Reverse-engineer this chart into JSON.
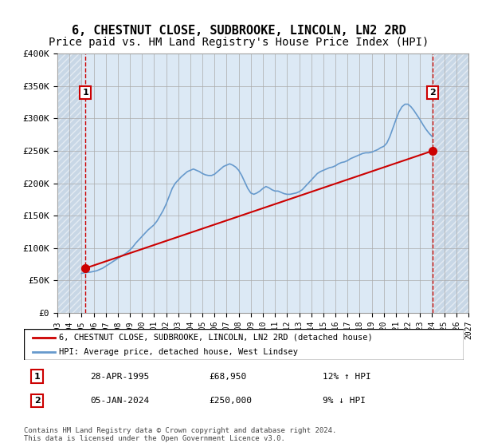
{
  "title": "6, CHESTNUT CLOSE, SUDBROOKE, LINCOLN, LN2 2RD",
  "subtitle": "Price paid vs. HM Land Registry's House Price Index (HPI)",
  "title_fontsize": 11,
  "subtitle_fontsize": 10,
  "background_color": "#dce9f5",
  "hatch_color": "#c0d0e0",
  "grid_color": "#aaaaaa",
  "ymin": 0,
  "ymax": 400000,
  "yticks": [
    0,
    50000,
    100000,
    150000,
    200000,
    250000,
    300000,
    350000,
    400000
  ],
  "ytick_labels": [
    "£0",
    "£50K",
    "£100K",
    "£150K",
    "£200K",
    "£250K",
    "£300K",
    "£350K",
    "£400K"
  ],
  "xmin": 1993.0,
  "xmax": 2027.0,
  "xticks": [
    1993,
    1994,
    1995,
    1996,
    1997,
    1998,
    1999,
    2000,
    2001,
    2002,
    2003,
    2004,
    2005,
    2006,
    2007,
    2008,
    2009,
    2010,
    2011,
    2012,
    2013,
    2014,
    2015,
    2016,
    2017,
    2018,
    2019,
    2020,
    2021,
    2022,
    2023,
    2024,
    2025,
    2026,
    2027
  ],
  "hpi_color": "#6699cc",
  "price_color": "#cc0000",
  "marker_color": "#cc0000",
  "dashed_color": "#cc0000",
  "transaction1_x": 1995.32,
  "transaction1_y": 68950,
  "transaction2_x": 2024.02,
  "transaction2_y": 250000,
  "legend_label1": "6, CHESTNUT CLOSE, SUDBROOKE, LINCOLN, LN2 2RD (detached house)",
  "legend_label2": "HPI: Average price, detached house, West Lindsey",
  "annotation1_num": "1",
  "annotation1_date": "28-APR-1995",
  "annotation1_price": "£68,950",
  "annotation1_hpi": "12% ↑ HPI",
  "annotation2_num": "2",
  "annotation2_date": "05-JAN-2024",
  "annotation2_price": "£250,000",
  "annotation2_hpi": "9% ↓ HPI",
  "footer": "Contains HM Land Registry data © Crown copyright and database right 2024.\nThis data is licensed under the Open Government Licence v3.0.",
  "hpi_data_x": [
    1995.0,
    1995.25,
    1995.5,
    1995.75,
    1996.0,
    1996.25,
    1996.5,
    1996.75,
    1997.0,
    1997.25,
    1997.5,
    1997.75,
    1998.0,
    1998.25,
    1998.5,
    1998.75,
    1999.0,
    1999.25,
    1999.5,
    1999.75,
    2000.0,
    2000.25,
    2000.5,
    2000.75,
    2001.0,
    2001.25,
    2001.5,
    2001.75,
    2002.0,
    2002.25,
    2002.5,
    2002.75,
    2003.0,
    2003.25,
    2003.5,
    2003.75,
    2004.0,
    2004.25,
    2004.5,
    2004.75,
    2005.0,
    2005.25,
    2005.5,
    2005.75,
    2006.0,
    2006.25,
    2006.5,
    2006.75,
    2007.0,
    2007.25,
    2007.5,
    2007.75,
    2008.0,
    2008.25,
    2008.5,
    2008.75,
    2009.0,
    2009.25,
    2009.5,
    2009.75,
    2010.0,
    2010.25,
    2010.5,
    2010.75,
    2011.0,
    2011.25,
    2011.5,
    2011.75,
    2012.0,
    2012.25,
    2012.5,
    2012.75,
    2013.0,
    2013.25,
    2013.5,
    2013.75,
    2014.0,
    2014.25,
    2014.5,
    2014.75,
    2015.0,
    2015.25,
    2015.5,
    2015.75,
    2016.0,
    2016.25,
    2016.5,
    2016.75,
    2017.0,
    2017.25,
    2017.5,
    2017.75,
    2018.0,
    2018.25,
    2018.5,
    2018.75,
    2019.0,
    2019.25,
    2019.5,
    2019.75,
    2020.0,
    2020.25,
    2020.5,
    2020.75,
    2021.0,
    2021.25,
    2021.5,
    2021.75,
    2022.0,
    2022.25,
    2022.5,
    2022.75,
    2023.0,
    2023.25,
    2023.5,
    2023.75,
    2024.0
  ],
  "hpi_data_y": [
    61000,
    62000,
    62500,
    63000,
    64000,
    65000,
    67000,
    69000,
    72000,
    75000,
    78000,
    81000,
    84000,
    87000,
    90000,
    93000,
    97000,
    102000,
    108000,
    113000,
    118000,
    123000,
    128000,
    132000,
    136000,
    142000,
    150000,
    158000,
    168000,
    180000,
    192000,
    200000,
    205000,
    210000,
    214000,
    218000,
    220000,
    222000,
    220000,
    218000,
    215000,
    213000,
    212000,
    212000,
    214000,
    218000,
    222000,
    226000,
    228000,
    230000,
    228000,
    225000,
    220000,
    212000,
    202000,
    192000,
    185000,
    183000,
    185000,
    188000,
    192000,
    195000,
    193000,
    190000,
    188000,
    188000,
    186000,
    184000,
    183000,
    183000,
    184000,
    185000,
    187000,
    190000,
    195000,
    200000,
    205000,
    210000,
    215000,
    218000,
    220000,
    222000,
    224000,
    225000,
    227000,
    230000,
    232000,
    233000,
    235000,
    238000,
    240000,
    242000,
    244000,
    246000,
    247000,
    247000,
    248000,
    250000,
    252000,
    255000,
    257000,
    262000,
    272000,
    285000,
    298000,
    310000,
    318000,
    322000,
    322000,
    318000,
    312000,
    305000,
    298000,
    290000,
    283000,
    277000,
    272000
  ],
  "price_data_x": [
    1995.32,
    2024.02
  ],
  "price_data_y": [
    68950,
    250000
  ],
  "data_start_x": 1995.0,
  "data_end_x": 2024.1
}
